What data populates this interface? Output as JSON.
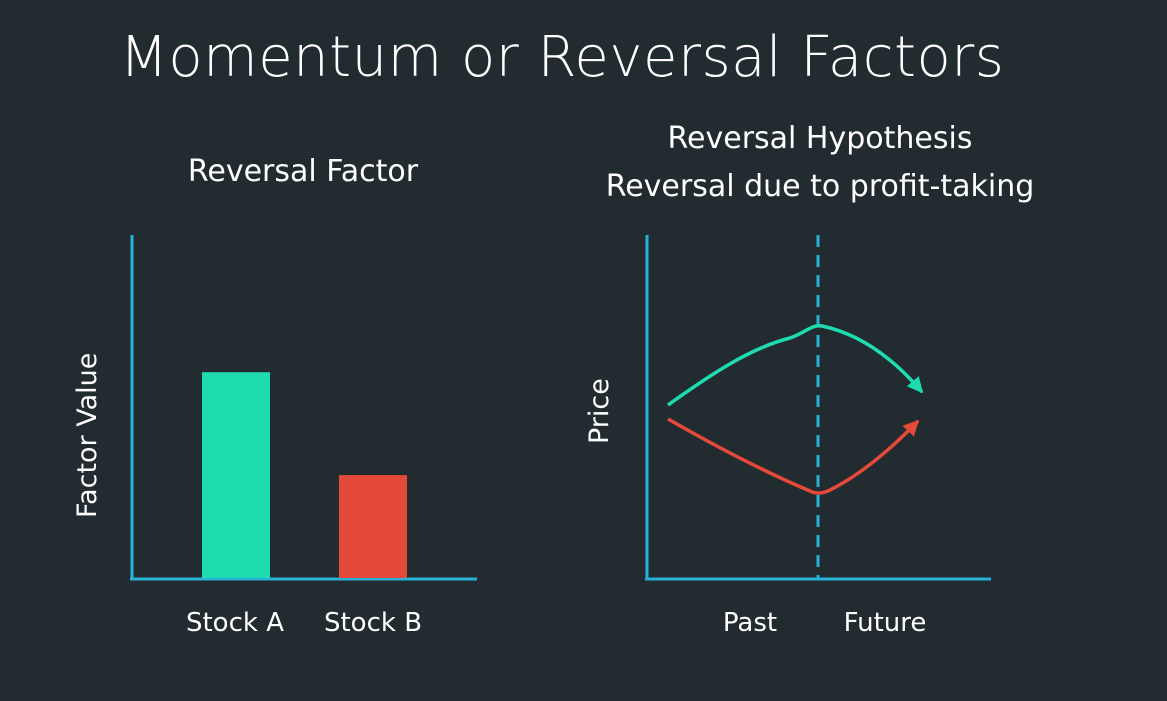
{
  "slide": {
    "title": "Momentum or Reversal Factors"
  },
  "left_panel": {
    "title": "Reversal Factor"
  },
  "right_panel": {
    "title_line1": "Reversal Hypothesis",
    "title_line2": "Reversal due to profit-taking"
  },
  "colors": {
    "background": "#222b30",
    "axis": "#27b2d6",
    "teal": "#1edcb0",
    "red": "#e4493a",
    "text": "#ffffff"
  },
  "chart_data": [
    {
      "type": "bar",
      "title": "Reversal Factor",
      "ylabel": "Factor Value",
      "xlabel": "",
      "categories": [
        "Stock A",
        "Stock B"
      ],
      "values": [
        0.6,
        0.3
      ],
      "ylim": [
        0,
        1
      ],
      "bar_colors": [
        "#1edcb0",
        "#e4493a"
      ],
      "grid": false
    },
    {
      "type": "line",
      "title": "Reversal Hypothesis",
      "subtitle": "Reversal due to profit-taking",
      "ylabel": "Price",
      "categories": [
        "Past",
        "Future"
      ],
      "divider": "dashed vertical line between Past and Future",
      "series": [
        {
          "trend_past": "rising",
          "trend_future": "falling",
          "color": "#1edcb0",
          "end": "arrow"
        },
        {
          "trend_past": "falling",
          "trend_future": "rising",
          "color": "#e4493a",
          "end": "arrow"
        }
      ],
      "grid": false
    }
  ]
}
